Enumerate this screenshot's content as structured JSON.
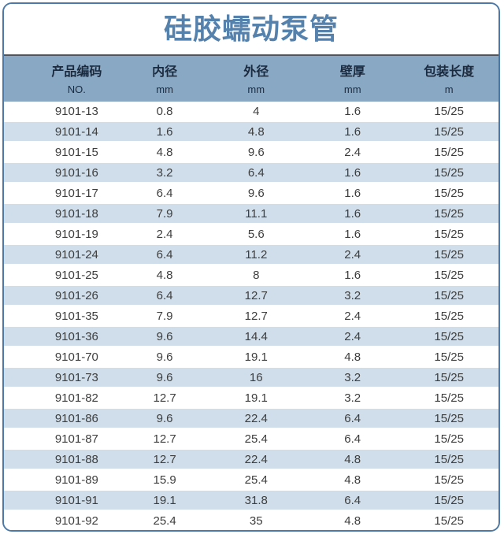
{
  "page": {
    "title": "硅胶蠕动泵管"
  },
  "table": {
    "columns": [
      {
        "label": "产品编码",
        "unit": "NO."
      },
      {
        "label": "内径",
        "unit": "mm"
      },
      {
        "label": "外径",
        "unit": "mm"
      },
      {
        "label": "壁厚",
        "unit": "mm"
      },
      {
        "label": "包装长度",
        "unit": "m"
      }
    ],
    "rows": [
      [
        "9101-13",
        "0.8",
        "4",
        "1.6",
        "15/25"
      ],
      [
        "9101-14",
        "1.6",
        "4.8",
        "1.6",
        "15/25"
      ],
      [
        "9101-15",
        "4.8",
        "9.6",
        "2.4",
        "15/25"
      ],
      [
        "9101-16",
        "3.2",
        "6.4",
        "1.6",
        "15/25"
      ],
      [
        "9101-17",
        "6.4",
        "9.6",
        "1.6",
        "15/25"
      ],
      [
        "9101-18",
        "7.9",
        "11.1",
        "1.6",
        "15/25"
      ],
      [
        "9101-19",
        "2.4",
        "5.6",
        "1.6",
        "15/25"
      ],
      [
        "9101-24",
        "6.4",
        "11.2",
        "2.4",
        "15/25"
      ],
      [
        "9101-25",
        "4.8",
        "8",
        "1.6",
        "15/25"
      ],
      [
        "9101-26",
        "6.4",
        "12.7",
        "3.2",
        "15/25"
      ],
      [
        "9101-35",
        "7.9",
        "12.7",
        "2.4",
        "15/25"
      ],
      [
        "9101-36",
        "9.6",
        "14.4",
        "2.4",
        "15/25"
      ],
      [
        "9101-70",
        "9.6",
        "19.1",
        "4.8",
        "15/25"
      ],
      [
        "9101-73",
        "9.6",
        "16",
        "3.2",
        "15/25"
      ],
      [
        "9101-82",
        "12.7",
        "19.1",
        "3.2",
        "15/25"
      ],
      [
        "9101-86",
        "9.6",
        "22.4",
        "6.4",
        "15/25"
      ],
      [
        "9101-87",
        "12.7",
        "25.4",
        "6.4",
        "15/25"
      ],
      [
        "9101-88",
        "12.7",
        "22.4",
        "4.8",
        "15/25"
      ],
      [
        "9101-89",
        "15.9",
        "25.4",
        "4.8",
        "15/25"
      ],
      [
        "9101-91",
        "19.1",
        "31.8",
        "6.4",
        "15/25"
      ],
      [
        "9101-92",
        "25.4",
        "35",
        "4.8",
        "15/25"
      ]
    ]
  },
  "colors": {
    "card_border": "#4d79a6",
    "title_text": "#5581ad",
    "header_bg": "#89a8c4",
    "header_text": "#1c2a3e",
    "header_top_rule": "#4e5560",
    "row_alt_bg": "#cfdeea",
    "body_text": "#3d3d3d"
  }
}
